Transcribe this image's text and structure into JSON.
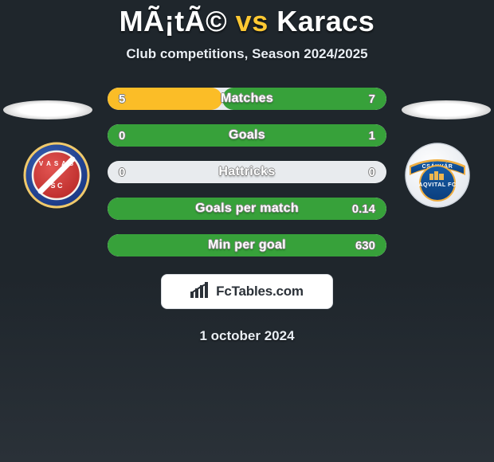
{
  "title": {
    "left": "MÃ¡tÃ©",
    "vs": "vs",
    "right": "Karacs",
    "highlight_color": "#ffc933"
  },
  "subtitle": "Club competitions, Season 2024/2025",
  "date": "1 october 2024",
  "brand": "FcTables.com",
  "colors": {
    "left_fill": "#fbbd27",
    "right_fill": "#37a13a",
    "track": "#e8ebee",
    "bg": "#1f262c"
  },
  "crests": {
    "left": {
      "outer_bg": "#21449a",
      "outer_border": "#f0c96b",
      "inner_bg": "#d23a38",
      "slash_color": "#ffffff"
    },
    "right": {
      "outer_bg": "#ffffff",
      "ribbon_bg": "#0d4b8f",
      "ribbon_outline": "#efae42",
      "skyline_color": "#eeb64f"
    }
  },
  "rows": [
    {
      "label": "Matches",
      "left_val": "5",
      "right_val": "7",
      "left_pct": 41,
      "right_pct": 59,
      "show_left": true,
      "show_right": true
    },
    {
      "label": "Goals",
      "left_val": "0",
      "right_val": "1",
      "left_pct": 0,
      "right_pct": 100,
      "show_left": true,
      "show_right": true
    },
    {
      "label": "Hattricks",
      "left_val": "0",
      "right_val": "0",
      "left_pct": 0,
      "right_pct": 0,
      "show_left": true,
      "show_right": true
    },
    {
      "label": "Goals per match",
      "left_val": "",
      "right_val": "0.14",
      "left_pct": 0,
      "right_pct": 100,
      "show_left": false,
      "show_right": true
    },
    {
      "label": "Min per goal",
      "left_val": "",
      "right_val": "630",
      "left_pct": 0,
      "right_pct": 100,
      "show_left": false,
      "show_right": true
    }
  ]
}
